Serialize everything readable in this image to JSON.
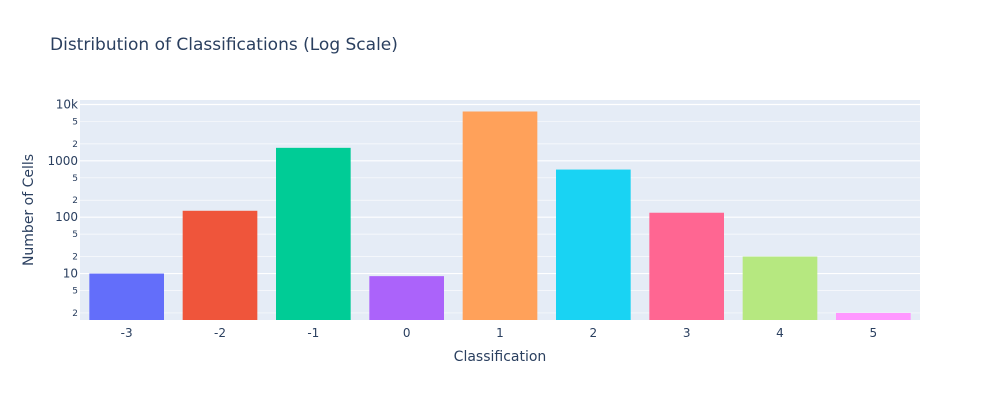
{
  "chart_data": {
    "type": "bar",
    "title": "Distribution of Classifications (Log Scale)",
    "xlabel": "Classification",
    "ylabel": "Number of Cells",
    "y_scale": "log",
    "ylim": [
      1.5,
      12000
    ],
    "y_major_ticks": [
      {
        "value": 10,
        "label": "10"
      },
      {
        "value": 100,
        "label": "100"
      },
      {
        "value": 1000,
        "label": "1000"
      },
      {
        "value": 10000,
        "label": "10k"
      }
    ],
    "y_minor_ticks": [
      {
        "value": 2,
        "label": "2"
      },
      {
        "value": 5,
        "label": "5"
      },
      {
        "value": 20,
        "label": "2"
      },
      {
        "value": 50,
        "label": "5"
      },
      {
        "value": 200,
        "label": "2"
      },
      {
        "value": 500,
        "label": "5"
      },
      {
        "value": 2000,
        "label": "2"
      },
      {
        "value": 5000,
        "label": "5"
      }
    ],
    "categories": [
      "-3",
      "-2",
      "-1",
      "0",
      "1",
      "2",
      "3",
      "4",
      "5"
    ],
    "values": [
      10,
      130,
      1700,
      9,
      7500,
      700,
      120,
      20,
      2
    ],
    "colors": [
      "#636efa",
      "#ef553b",
      "#00cc96",
      "#ab63fa",
      "#ffa15a",
      "#19d3f3",
      "#ff6692",
      "#b6e880",
      "#ff97ff"
    ],
    "grid": true,
    "plot_bgcolor": "#e5ecf6"
  }
}
